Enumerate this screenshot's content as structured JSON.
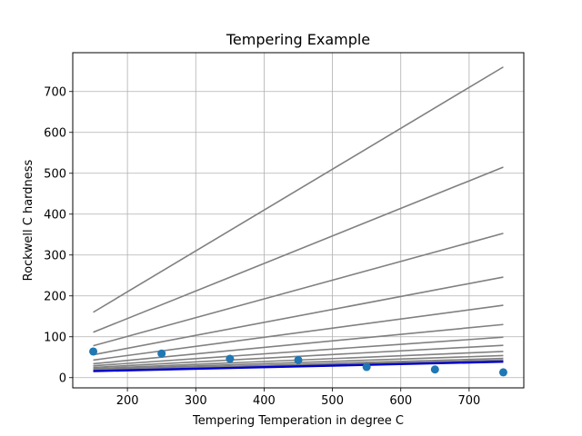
{
  "chart_data": {
    "type": "line",
    "title": "Tempering Example",
    "xlabel": "Tempering Temperation in degree C",
    "ylabel": "Rockwell C hardness",
    "xlim": [
      120,
      780
    ],
    "ylim": [
      -25,
      795
    ],
    "xticks": [
      200,
      300,
      400,
      500,
      600,
      700
    ],
    "yticks": [
      0,
      100,
      200,
      300,
      400,
      500,
      600,
      700
    ],
    "grid": true,
    "colors": {
      "fit_lines": "#808080",
      "best_fit": "#0000cc",
      "points": "#1f77b4"
    },
    "x_range": [
      150,
      750
    ],
    "fit_lines": [
      {
        "values": [
          160,
          760
        ]
      },
      {
        "values": [
          111,
          515
        ]
      },
      {
        "values": [
          78,
          353
        ]
      },
      {
        "values": [
          56,
          246
        ]
      },
      {
        "values": [
          43,
          177
        ]
      },
      {
        "values": [
          34,
          130
        ]
      },
      {
        "values": [
          29,
          99
        ]
      },
      {
        "values": [
          25,
          79
        ]
      },
      {
        "values": [
          22,
          64
        ]
      },
      {
        "values": [
          20,
          54
        ]
      },
      {
        "values": [
          18,
          47
        ]
      },
      {
        "values": [
          17,
          43
        ]
      },
      {
        "values": [
          16,
          40
        ]
      }
    ],
    "best_fit": {
      "values": [
        16,
        39
      ]
    },
    "points": {
      "x": [
        150,
        250,
        350,
        450,
        550,
        650,
        750
      ],
      "y": [
        64,
        59,
        46,
        43,
        26,
        20,
        13
      ]
    }
  }
}
